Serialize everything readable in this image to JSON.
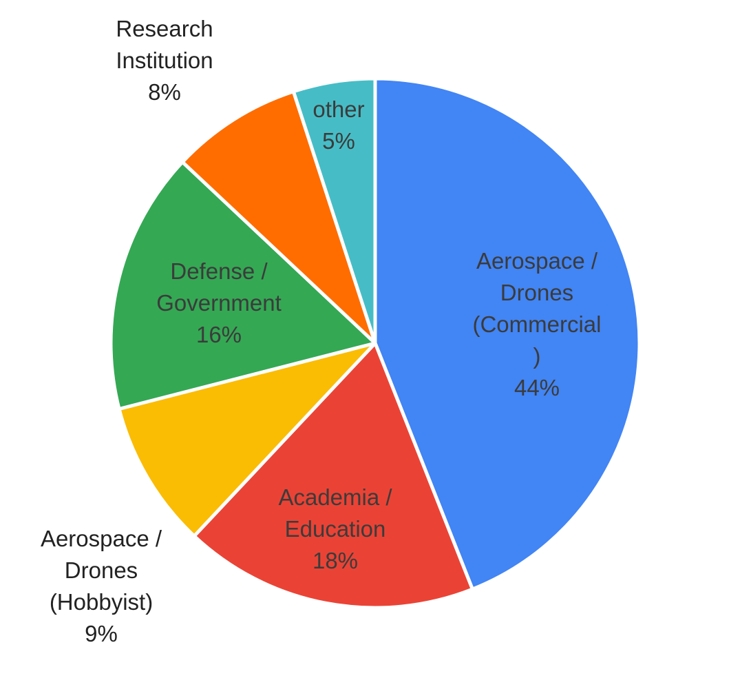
{
  "chart_data": {
    "type": "pie",
    "slices": [
      {
        "name": "Aerospace / Drones (Commercial)",
        "value": 44,
        "percent_label": "44%",
        "label_lines": [
          "Aerospace /",
          "Drones",
          "(Commercial",
          ")",
          "44%"
        ],
        "color": "#4285F4",
        "label_color": "#3b3b3b",
        "label_outside": false
      },
      {
        "name": "Academia / Education",
        "value": 18,
        "percent_label": "18%",
        "label_lines": [
          "Academia /",
          "Education",
          "18%"
        ],
        "color": "#EA4335",
        "label_color": "#3b3b3b",
        "label_outside": false
      },
      {
        "name": "Aerospace / Drones (Hobbyist)",
        "value": 9,
        "percent_label": "9%",
        "label_lines": [
          "Aerospace /",
          "Drones",
          "(Hobbyist)",
          "9%"
        ],
        "color": "#FBBC04",
        "label_color": "#222222",
        "label_outside": true
      },
      {
        "name": "Defense / Government",
        "value": 16,
        "percent_label": "16%",
        "label_lines": [
          "Defense /",
          "Government",
          "16%"
        ],
        "color": "#34A853",
        "label_color": "#3b3b3b",
        "label_outside": false
      },
      {
        "name": "Research Institution",
        "value": 8,
        "percent_label": "8%",
        "label_lines": [
          "Research",
          "Institution",
          "8%"
        ],
        "color": "#FF6D01",
        "label_color": "#222222",
        "label_outside": true
      },
      {
        "name": "other",
        "value": 5,
        "percent_label": "5%",
        "label_lines": [
          "other",
          "5%"
        ],
        "color": "#46BDC6",
        "label_color": "#3b3b3b",
        "label_outside": false
      }
    ],
    "start": "top",
    "direction": "clockwise",
    "legend": "none"
  }
}
